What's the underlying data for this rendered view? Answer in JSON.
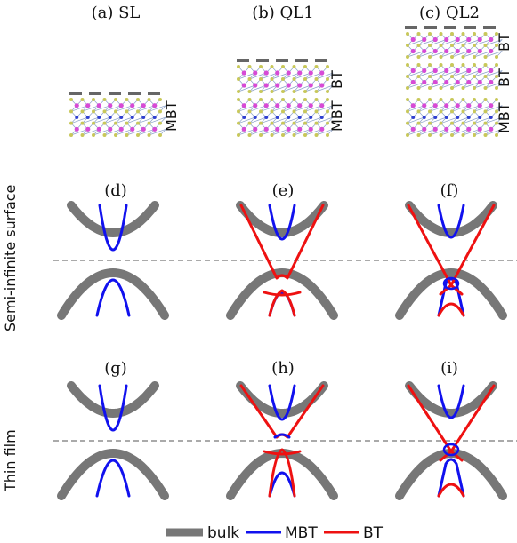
{
  "colors": {
    "bulk": "#777777",
    "mbt": "#1111ee",
    "bt": "#ee1111",
    "surface_bar": "#666666",
    "atom_magenta": "#d64bd6",
    "atom_yellow": "#c8c85a",
    "atom_blue": "#3040d0",
    "bond": "#8aa0c8"
  },
  "columns": [
    {
      "label": "(a) SL",
      "layers": [
        "MBT"
      ]
    },
    {
      "label": "(b) QL1",
      "layers": [
        "BT",
        "MBT"
      ]
    },
    {
      "label": "(c) QL2",
      "layers": [
        "BT",
        "BT",
        "MBT"
      ]
    }
  ],
  "row_labels": [
    "Semi-infinite surface",
    "Thin film"
  ],
  "panels": {
    "top": [
      {
        "label": "(d)",
        "type": "sl"
      },
      {
        "label": "(e)",
        "type": "ql1"
      },
      {
        "label": "(f)",
        "type": "ql2"
      }
    ],
    "bottom": [
      {
        "label": "(g)",
        "type": "sl"
      },
      {
        "label": "(h)",
        "type": "ql1"
      },
      {
        "label": "(i)",
        "type": "ql2"
      }
    ]
  },
  "legend": [
    {
      "label": "bulk",
      "color_key": "bulk"
    },
    {
      "label": "MBT",
      "color_key": "mbt"
    },
    {
      "label": "BT",
      "color_key": "bt"
    }
  ]
}
